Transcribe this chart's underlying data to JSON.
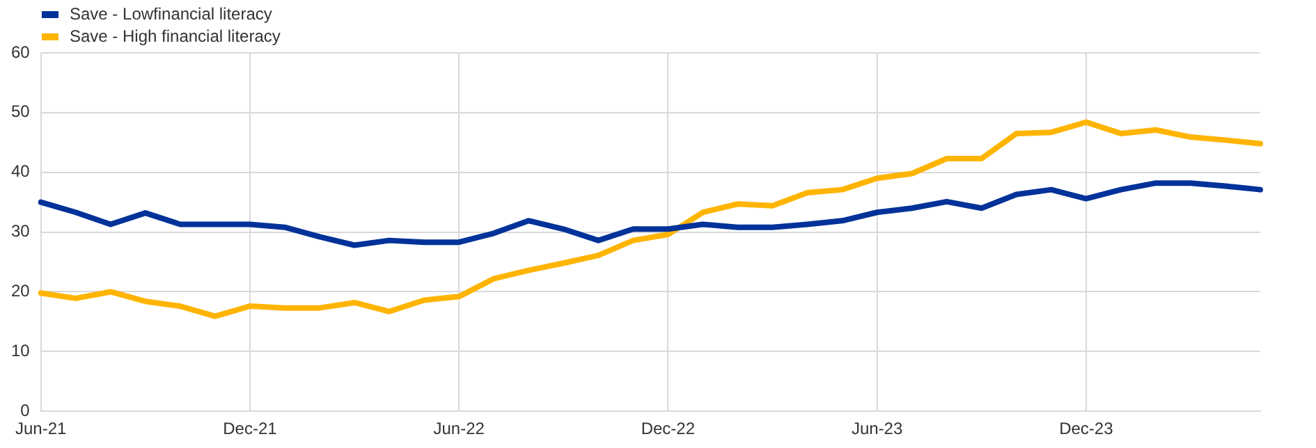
{
  "chart_data": {
    "type": "line",
    "categories": [
      "Jun-21",
      null,
      null,
      null,
      null,
      null,
      "Dec-21",
      null,
      null,
      null,
      null,
      null,
      "Jun-22",
      null,
      null,
      null,
      null,
      null,
      "Dec-22",
      null,
      null,
      null,
      null,
      null,
      "Jun-23",
      null,
      null,
      null,
      null,
      null,
      "Dec-23",
      null,
      null,
      null,
      null,
      null
    ],
    "series": [
      {
        "name": "Save - Lowfinancial literacy",
        "color": "#003299",
        "values": [
          35,
          33.3,
          31.3,
          33.2,
          31.3,
          31.3,
          31.3,
          30.8,
          29.2,
          27.8,
          28.6,
          28.3,
          28.3,
          29.8,
          31.9,
          30.5,
          28.6,
          30.5,
          30.5,
          31.3,
          30.8,
          30.8,
          31.3,
          31.9,
          33.3,
          34,
          35.1,
          34,
          36.3,
          37.1,
          35.6,
          37.1,
          38.2,
          38.2,
          37.7,
          37.1
        ]
      },
      {
        "name": "Save - High financial literacy",
        "color": "#ffb400",
        "values": [
          19.8,
          18.9,
          20,
          18.4,
          17.6,
          15.9,
          17.6,
          17.3,
          17.3,
          18.2,
          16.7,
          18.6,
          19.2,
          22.2,
          23.6,
          24.8,
          26.1,
          28.6,
          29.6,
          33.3,
          34.7,
          34.4,
          36.6,
          37.1,
          39,
          39.8,
          42.3,
          42.3,
          46.5,
          46.7,
          48.4,
          46.5,
          47.1,
          45.9,
          45.4,
          44.8
        ]
      }
    ],
    "ylim": [
      0,
      60
    ],
    "yticks": [
      0,
      10,
      20,
      30,
      40,
      50,
      60
    ],
    "grid": true,
    "legend": "top left",
    "marker": "none",
    "line_style": "solid"
  }
}
